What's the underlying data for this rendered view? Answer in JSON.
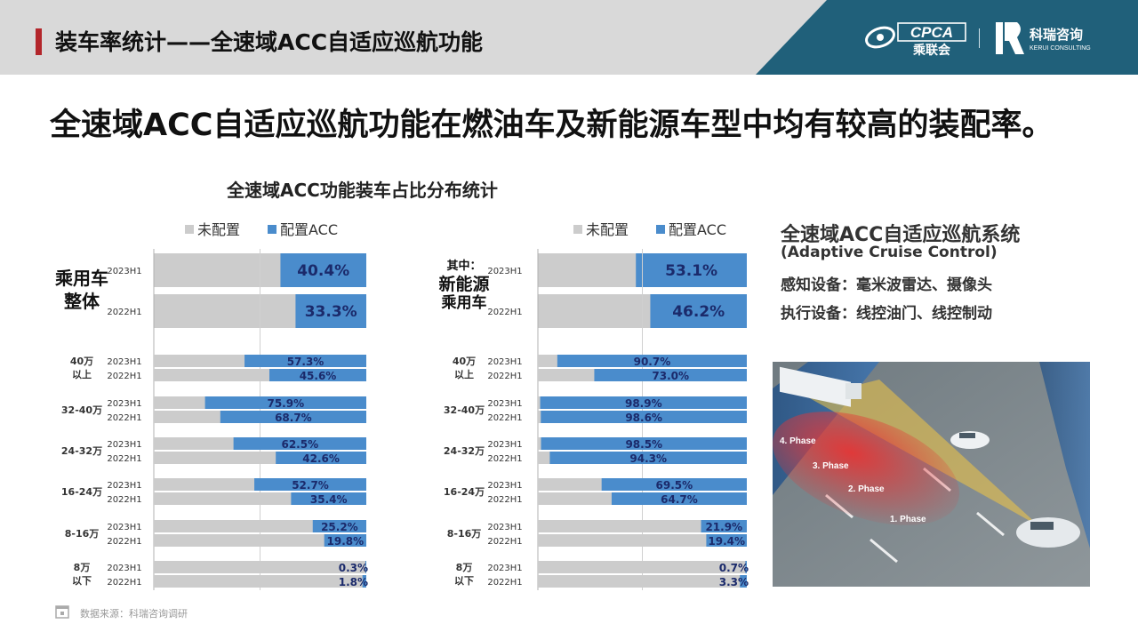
{
  "header": {
    "title": "装车率统计——全速域ACC自适应巡航功能",
    "logo_cpca": "CPCA",
    "logo_cpca_cn": "乘联会",
    "logo_kr_cn": "科瑞咨询",
    "logo_kr_en": "KERUI CONSULTING"
  },
  "headline": "全速域ACC自适应巡航功能在燃油车及新能源车型中均有较高的装配率。",
  "chart_title": "全速域ACC功能装车占比分布统计",
  "colors": {
    "configured": "#4a8ccc",
    "not_configured": "#cccccc",
    "accent": "#b3262b",
    "teal": "#20607a"
  },
  "chart_data": [
    {
      "type": "bar",
      "stacked": true,
      "orientation": "horizontal",
      "legend": [
        "未配置",
        "配置ACC"
      ],
      "legend_position": "top",
      "xlim": [
        0,
        100
      ],
      "summary": {
        "label_lines": [
          "乘用车",
          "整体"
        ],
        "rows": [
          {
            "period": "2023H1",
            "acc": 40.4,
            "acc_label": "40.4%"
          },
          {
            "period": "2022H1",
            "acc": 33.3,
            "acc_label": "33.3%"
          }
        ]
      },
      "groups": [
        {
          "label_lines": [
            "40万",
            "以上"
          ],
          "rows": [
            {
              "period": "2023H1",
              "acc": 57.3,
              "acc_label": "57.3%"
            },
            {
              "period": "2022H1",
              "acc": 45.6,
              "acc_label": "45.6%"
            }
          ]
        },
        {
          "label_lines": [
            "32-40万"
          ],
          "rows": [
            {
              "period": "2023H1",
              "acc": 75.9,
              "acc_label": "75.9%"
            },
            {
              "period": "2022H1",
              "acc": 68.7,
              "acc_label": "68.7%"
            }
          ]
        },
        {
          "label_lines": [
            "24-32万"
          ],
          "rows": [
            {
              "period": "2023H1",
              "acc": 62.5,
              "acc_label": "62.5%"
            },
            {
              "period": "2022H1",
              "acc": 42.6,
              "acc_label": "42.6%"
            }
          ]
        },
        {
          "label_lines": [
            "16-24万"
          ],
          "rows": [
            {
              "period": "2023H1",
              "acc": 52.7,
              "acc_label": "52.7%"
            },
            {
              "period": "2022H1",
              "acc": 35.4,
              "acc_label": "35.4%"
            }
          ]
        },
        {
          "label_lines": [
            "8-16万"
          ],
          "rows": [
            {
              "period": "2023H1",
              "acc": 25.2,
              "acc_label": "25.2%"
            },
            {
              "period": "2022H1",
              "acc": 19.8,
              "acc_label": "19.8%"
            }
          ]
        },
        {
          "label_lines": [
            "8万",
            "以下"
          ],
          "rows": [
            {
              "period": "2023H1",
              "acc": 0.3,
              "acc_label": "0.3%"
            },
            {
              "period": "2022H1",
              "acc": 1.8,
              "acc_label": "1.8%"
            }
          ]
        }
      ]
    },
    {
      "type": "bar",
      "stacked": true,
      "orientation": "horizontal",
      "legend": [
        "未配置",
        "配置ACC"
      ],
      "legend_position": "top",
      "xlim": [
        0,
        100
      ],
      "summary": {
        "label_lines": [
          "其中：",
          "新能源",
          "乘用车"
        ],
        "rows": [
          {
            "period": "2023H1",
            "acc": 53.1,
            "acc_label": "53.1%"
          },
          {
            "period": "2022H1",
            "acc": 46.2,
            "acc_label": "46.2%"
          }
        ]
      },
      "groups": [
        {
          "label_lines": [
            "40万",
            "以上"
          ],
          "rows": [
            {
              "period": "2023H1",
              "acc": 90.7,
              "acc_label": "90.7%"
            },
            {
              "period": "2022H1",
              "acc": 73.0,
              "acc_label": "73.0%"
            }
          ]
        },
        {
          "label_lines": [
            "32-40万"
          ],
          "rows": [
            {
              "period": "2023H1",
              "acc": 98.9,
              "acc_label": "98.9%"
            },
            {
              "period": "2022H1",
              "acc": 98.6,
              "acc_label": "98.6%"
            }
          ]
        },
        {
          "label_lines": [
            "24-32万"
          ],
          "rows": [
            {
              "period": "2023H1",
              "acc": 98.5,
              "acc_label": "98.5%"
            },
            {
              "period": "2022H1",
              "acc": 94.3,
              "acc_label": "94.3%"
            }
          ]
        },
        {
          "label_lines": [
            "16-24万"
          ],
          "rows": [
            {
              "period": "2023H1",
              "acc": 69.5,
              "acc_label": "69.5%"
            },
            {
              "period": "2022H1",
              "acc": 64.7,
              "acc_label": "64.7%"
            }
          ]
        },
        {
          "label_lines": [
            "8-16万"
          ],
          "rows": [
            {
              "period": "2023H1",
              "acc": 21.9,
              "acc_label": "21.9%"
            },
            {
              "period": "2022H1",
              "acc": 19.4,
              "acc_label": "19.4%"
            }
          ]
        },
        {
          "label_lines": [
            "8万",
            "以下"
          ],
          "rows": [
            {
              "period": "2023H1",
              "acc": 0.7,
              "acc_label": "0.7%"
            },
            {
              "period": "2022H1",
              "acc": 3.3,
              "acc_label": "3.3%"
            }
          ]
        }
      ]
    }
  ],
  "info": {
    "title": "全速域ACC自适应巡航系统",
    "subtitle": "(Adaptive Cruise Control)",
    "sensing": "感知设备：毫米波雷达、摄像头",
    "actuation": "执行设备：线控油门、线控制动"
  },
  "illustration": {
    "phases": [
      "1. Phase",
      "2. Phase",
      "3. Phase",
      "4. Phase"
    ]
  },
  "footer": {
    "source": "数据来源：科瑞咨询调研"
  }
}
